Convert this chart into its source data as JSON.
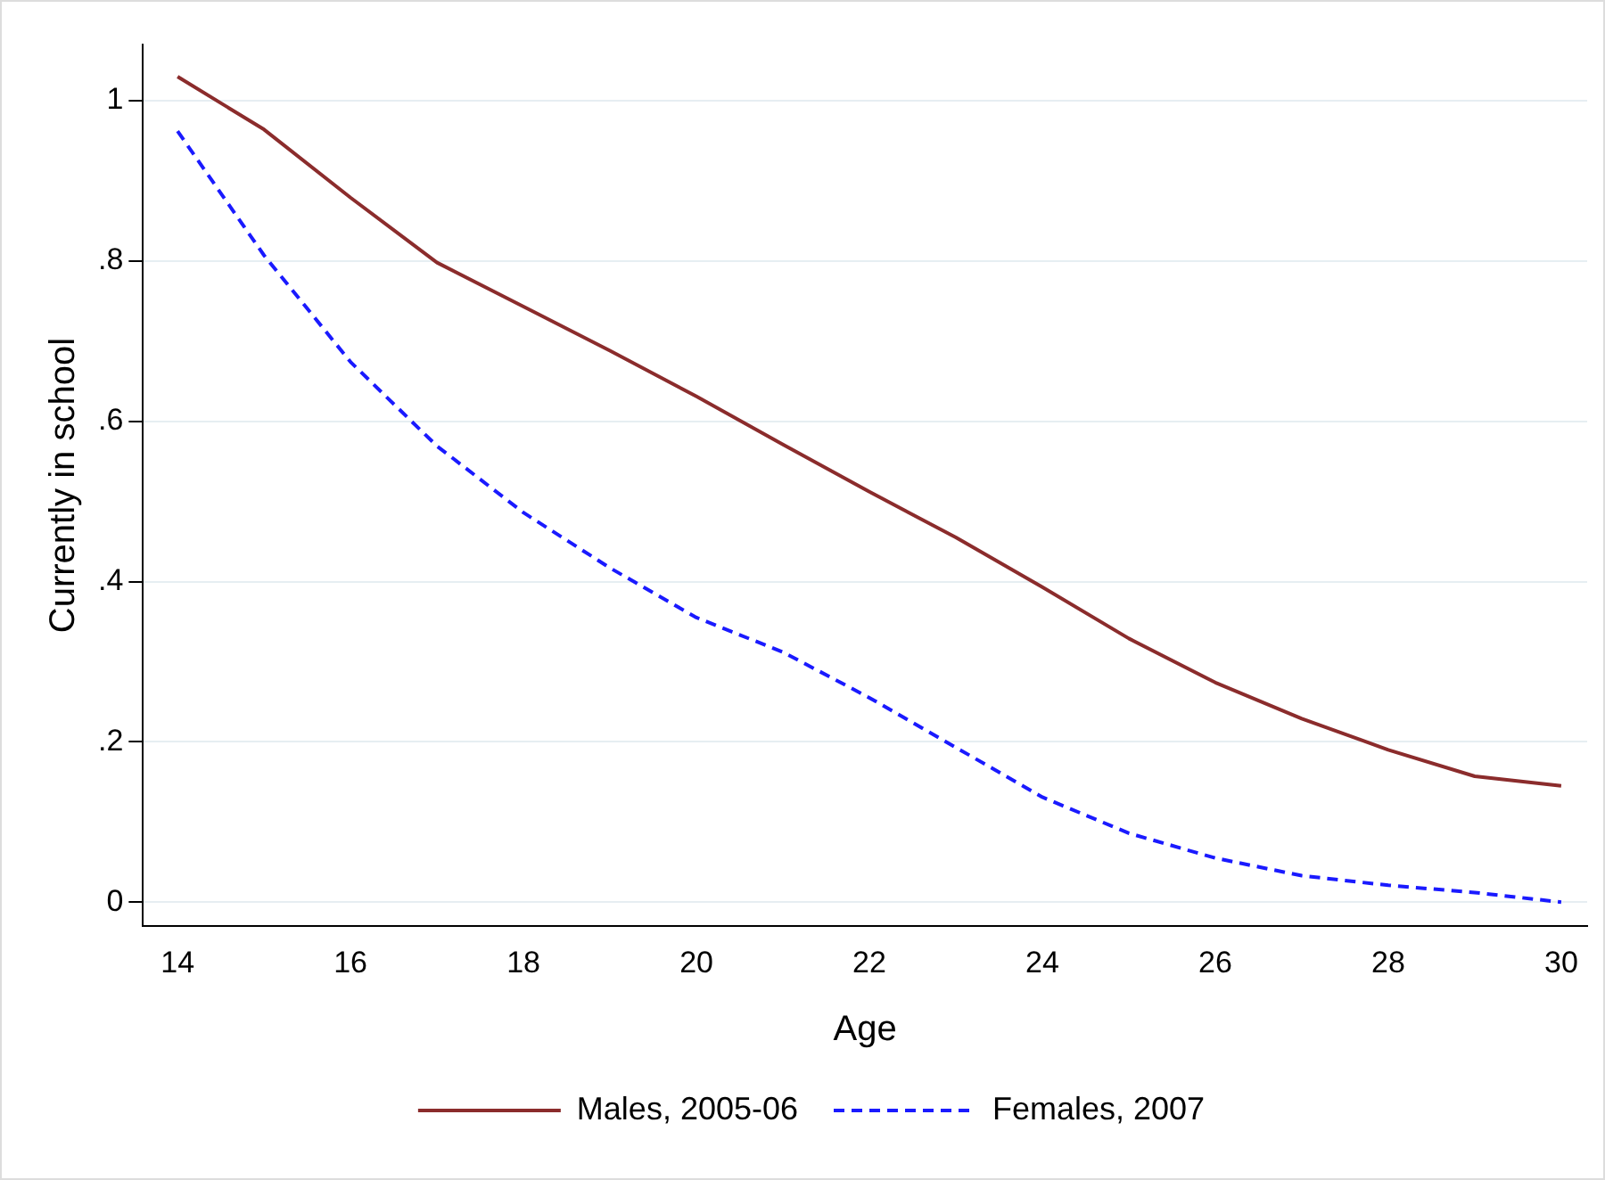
{
  "chart_data": {
    "type": "line",
    "xlabel": "Age",
    "ylabel": "Currently in school",
    "x": [
      14,
      15,
      16,
      17,
      18,
      19,
      20,
      21,
      22,
      23,
      24,
      25,
      26,
      27,
      28,
      29,
      30
    ],
    "series": [
      {
        "name": "Males, 2005-06",
        "color": "#8b2c2c",
        "line_style": "solid",
        "values": [
          1.03,
          0.964,
          0.879,
          0.798,
          0.743,
          0.688,
          0.631,
          0.571,
          0.512,
          0.455,
          0.393,
          0.329,
          0.274,
          0.229,
          0.19,
          0.157,
          0.145
        ]
      },
      {
        "name": "Females, 2007",
        "color": "#1a1aff",
        "line_style": "dashed",
        "values": [
          0.962,
          0.807,
          0.674,
          0.569,
          0.486,
          0.417,
          0.355,
          0.312,
          0.255,
          0.193,
          0.131,
          0.086,
          0.055,
          0.033,
          0.021,
          0.012,
          0.0
        ]
      }
    ],
    "xlim": [
      13.6,
      30.3
    ],
    "xticks": [
      14,
      16,
      18,
      20,
      22,
      24,
      26,
      28,
      30
    ],
    "ylim": [
      -0.03,
      1.07
    ],
    "yticks": [
      {
        "value": 0,
        "label": "0"
      },
      {
        "value": 0.2,
        "label": ".2"
      },
      {
        "value": 0.4,
        "label": ".4"
      },
      {
        "value": 0.6,
        "label": ".6"
      },
      {
        "value": 0.8,
        "label": ".8"
      },
      {
        "value": 1,
        "label": "1"
      }
    ],
    "grid": "y",
    "legend": "bottom",
    "marker": "none"
  }
}
